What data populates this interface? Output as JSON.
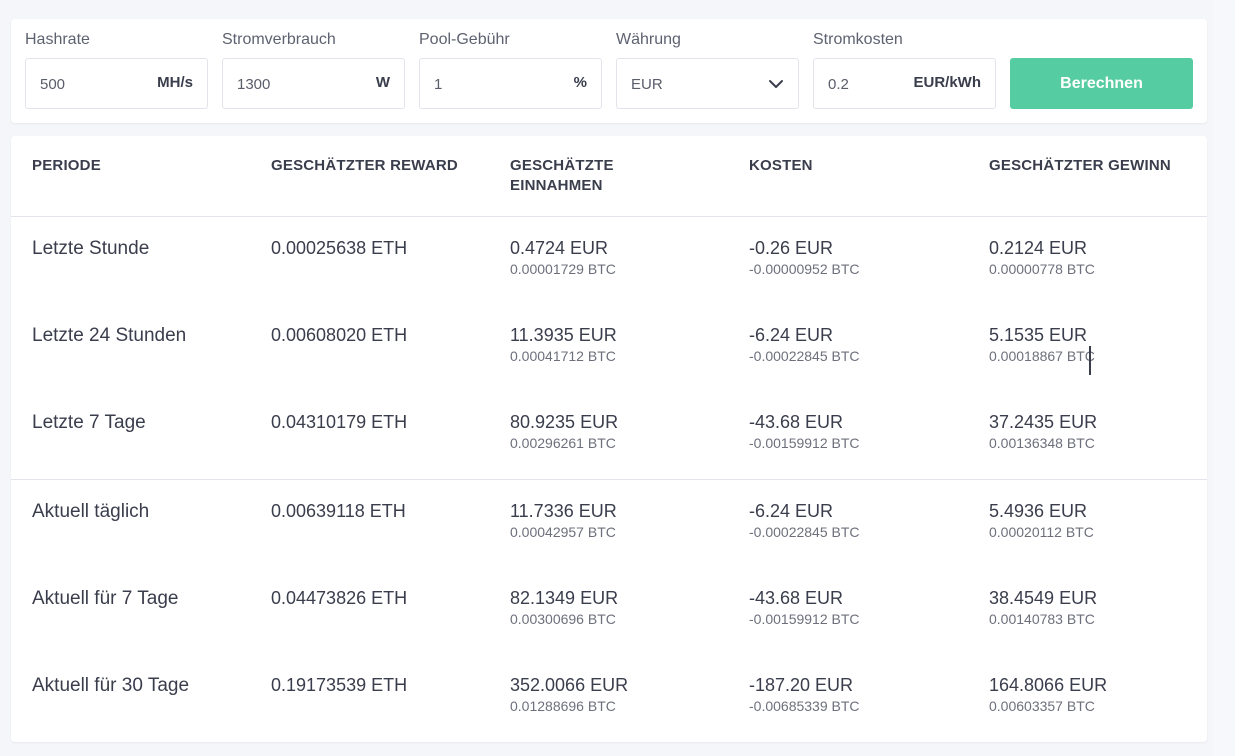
{
  "form": {
    "hashrate": {
      "label": "Hashrate",
      "value": "500",
      "unit": "MH/s"
    },
    "power": {
      "label": "Stromverbrauch",
      "value": "1300",
      "unit": "W"
    },
    "pool_fee": {
      "label": "Pool-Gebühr",
      "value": "1",
      "unit": "%"
    },
    "currency": {
      "label": "Währung",
      "value": "EUR"
    },
    "power_cost": {
      "label": "Stromkosten",
      "value": "0.2",
      "unit": "EUR/kWh"
    },
    "calculate_label": "Berechnen"
  },
  "table": {
    "headers": {
      "period": "PERIODE",
      "reward": "GESCHÄTZTER REWARD",
      "revenue_line1": "GESCHÄTZTE",
      "revenue_line2": "EINNAHMEN",
      "costs": "KOSTEN",
      "profit": "GESCHÄTZTER GEWINN"
    },
    "rows": [
      {
        "period": "Letzte Stunde",
        "reward": "0.00025638 ETH",
        "revenue": "0.4724 EUR",
        "revenue_btc": "0.00001729 BTC",
        "costs": "-0.26 EUR",
        "costs_btc": "-0.00000952 BTC",
        "profit": "0.2124 EUR",
        "profit_btc": "0.00000778 BTC"
      },
      {
        "period": "Letzte 24 Stunden",
        "reward": "0.00608020 ETH",
        "revenue": "11.3935 EUR",
        "revenue_btc": "0.00041712 BTC",
        "costs": "-6.24 EUR",
        "costs_btc": "-0.00022845 BTC",
        "profit": "5.1535 EUR",
        "profit_btc": "0.00018867 BTC"
      },
      {
        "period": "Letzte 7 Tage",
        "reward": "0.04310179 ETH",
        "revenue": "80.9235 EUR",
        "revenue_btc": "0.00296261 BTC",
        "costs": "-43.68 EUR",
        "costs_btc": "-0.00159912 BTC",
        "profit": "37.2435 EUR",
        "profit_btc": "0.00136348 BTC"
      },
      {
        "period": "Aktuell täglich",
        "reward": "0.00639118 ETH",
        "revenue": "11.7336 EUR",
        "revenue_btc": "0.00042957 BTC",
        "costs": "-6.24 EUR",
        "costs_btc": "-0.00022845 BTC",
        "profit": "5.4936 EUR",
        "profit_btc": "0.00020112 BTC"
      },
      {
        "period": "Aktuell für 7 Tage",
        "reward": "0.04473826 ETH",
        "revenue": "82.1349 EUR",
        "revenue_btc": "0.00300696 BTC",
        "costs": "-43.68 EUR",
        "costs_btc": "-0.00159912 BTC",
        "profit": "38.4549 EUR",
        "profit_btc": "0.00140783 BTC"
      },
      {
        "period": "Aktuell für 30 Tage",
        "reward": "0.19173539 ETH",
        "revenue": "352.0066 EUR",
        "revenue_btc": "0.01288696 BTC",
        "costs": "-187.20 EUR",
        "costs_btc": "-0.00685339 BTC",
        "profit": "164.8066 EUR",
        "profit_btc": "0.00603357 BTC"
      }
    ]
  },
  "colors": {
    "accent": "#56cca2",
    "text": "#3a3d4c",
    "muted": "#6d707c"
  },
  "icons": {
    "currency_dropdown": "chevron-down-icon"
  }
}
